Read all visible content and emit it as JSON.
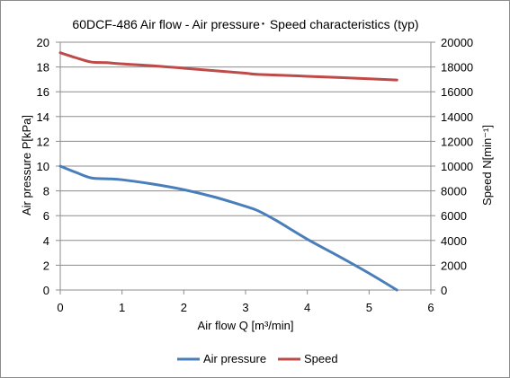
{
  "chart_data": {
    "type": "line",
    "title": "60DCF-486  Air flow - Air pressure･ Speed characteristics (typ)",
    "xlabel": "Air flow  Q [m³/min]",
    "ylabel_left": "Air pressure  P[kPa]",
    "ylabel_right": "Speed  N[min⁻¹]",
    "xlim": [
      0,
      6
    ],
    "ylim_left": [
      0,
      20
    ],
    "ylim_right": [
      0,
      20000
    ],
    "x_ticks": [
      "0",
      "1",
      "2",
      "3",
      "4",
      "5",
      "6"
    ],
    "y_left_ticks": [
      "0",
      "2",
      "4",
      "6",
      "8",
      "10",
      "12",
      "14",
      "16",
      "18",
      "20"
    ],
    "y_right_ticks": [
      "0",
      "2000",
      "4000",
      "6000",
      "8000",
      "10000",
      "12000",
      "14000",
      "16000",
      "18000",
      "20000"
    ],
    "grid": "horizontal",
    "legend_position": "bottom",
    "series": [
      {
        "name": "Air pressure",
        "axis": "left",
        "color": "#4a7ebb",
        "points": [
          [
            0,
            10.0
          ],
          [
            0.25,
            9.5
          ],
          [
            0.5,
            9.05
          ],
          [
            0.75,
            8.98
          ],
          [
            1.0,
            8.9
          ],
          [
            1.5,
            8.55
          ],
          [
            2.0,
            8.1
          ],
          [
            2.5,
            7.5
          ],
          [
            3.0,
            6.75
          ],
          [
            3.2,
            6.4
          ],
          [
            3.5,
            5.6
          ],
          [
            4.0,
            4.1
          ],
          [
            4.5,
            2.75
          ],
          [
            5.0,
            1.35
          ],
          [
            5.45,
            0.0
          ]
        ]
      },
      {
        "name": "Speed",
        "axis": "right",
        "color": "#be4b48",
        "points": [
          [
            0,
            19150
          ],
          [
            0.25,
            18750
          ],
          [
            0.5,
            18400
          ],
          [
            0.75,
            18350
          ],
          [
            1.0,
            18250
          ],
          [
            1.5,
            18100
          ],
          [
            2.0,
            17900
          ],
          [
            2.5,
            17700
          ],
          [
            3.0,
            17500
          ],
          [
            3.2,
            17400
          ],
          [
            4.0,
            17250
          ],
          [
            5.0,
            17050
          ],
          [
            5.45,
            16950
          ]
        ]
      }
    ]
  }
}
